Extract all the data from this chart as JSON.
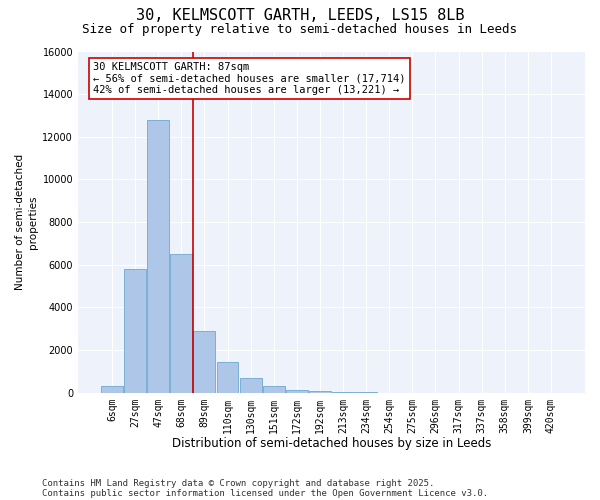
{
  "title1": "30, KELMSCOTT GARTH, LEEDS, LS15 8LB",
  "title2": "Size of property relative to semi-detached houses in Leeds",
  "xlabel": "Distribution of semi-detached houses by size in Leeds",
  "ylabel": "Number of semi-detached\nproperties",
  "categories": [
    "6sqm",
    "27sqm",
    "47sqm",
    "68sqm",
    "89sqm",
    "110sqm",
    "130sqm",
    "151sqm",
    "172sqm",
    "192sqm",
    "213sqm",
    "234sqm",
    "254sqm",
    "275sqm",
    "296sqm",
    "317sqm",
    "337sqm",
    "358sqm",
    "399sqm",
    "420sqm"
  ],
  "values": [
    300,
    5800,
    12800,
    6500,
    2900,
    1450,
    700,
    300,
    150,
    75,
    35,
    15,
    5,
    2,
    0,
    0,
    0,
    0,
    0,
    0
  ],
  "bar_color": "#aec6e8",
  "bar_edge_color": "#7aafd4",
  "property_line_color": "#cc0000",
  "annotation_text": "30 KELMSCOTT GARTH: 87sqm\n← 56% of semi-detached houses are smaller (17,714)\n42% of semi-detached houses are larger (13,221) →",
  "annotation_box_color": "#cc0000",
  "ylim": [
    0,
    16000
  ],
  "yticks": [
    0,
    2000,
    4000,
    6000,
    8000,
    10000,
    12000,
    14000,
    16000
  ],
  "bg_color": "#eef2fb",
  "footer1": "Contains HM Land Registry data © Crown copyright and database right 2025.",
  "footer2": "Contains public sector information licensed under the Open Government Licence v3.0.",
  "title1_fontsize": 11,
  "title2_fontsize": 9,
  "xlabel_fontsize": 8.5,
  "ylabel_fontsize": 7.5,
  "tick_fontsize": 7,
  "annotation_fontsize": 7.5,
  "footer_fontsize": 6.5
}
